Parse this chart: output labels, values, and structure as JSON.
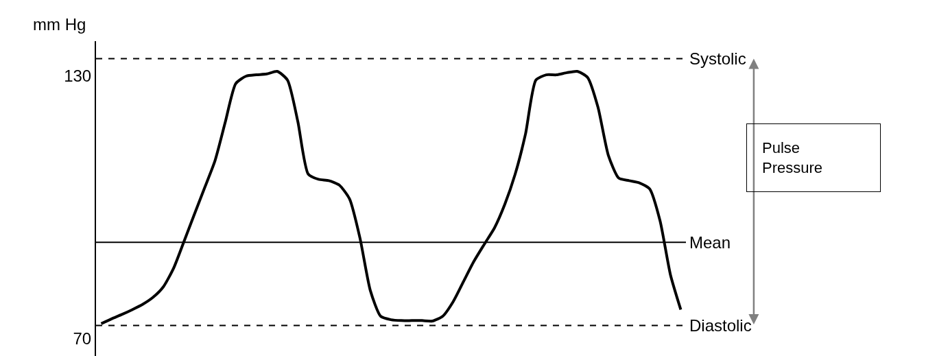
{
  "chart_data": {
    "type": "line",
    "ylabel": "mm Hg",
    "categories": [
      null,
      null,
      null,
      null,
      null,
      null,
      null,
      null,
      null,
      null,
      null,
      null,
      null,
      null,
      null,
      null,
      null,
      null,
      null,
      null,
      null,
      null,
      null,
      null,
      null,
      null,
      null,
      null,
      null,
      null,
      null,
      null,
      null,
      null,
      null,
      null,
      null,
      null,
      null,
      null,
      null,
      null,
      null,
      null,
      null,
      null,
      null,
      null,
      null,
      null,
      null,
      null,
      null,
      null,
      null,
      null,
      null
    ],
    "series": [
      {
        "color": "#000000",
        "values": [
          73.4,
          74.5,
          75.5,
          76.6,
          77.8,
          79.4,
          81.8,
          86.1,
          92.2,
          98.4,
          104.5,
          110.7,
          119.6,
          128.3,
          130,
          130.3,
          130.5,
          131.1,
          129.1,
          119.6,
          107.6,
          106.4,
          106.1,
          105.1,
          101.9,
          93,
          81,
          75.1,
          74.3,
          74.1,
          74.1,
          74.1,
          74,
          75.1,
          78.4,
          83,
          87.6,
          91.5,
          95.3,
          100.7,
          107.6,
          116.8,
          129.1,
          130.3,
          130.3,
          130.8,
          131.1,
          129.7,
          122.9,
          111.9,
          106.7,
          106.1,
          105.6,
          104.2,
          96.9,
          84.6,
          76.6
        ]
      }
    ],
    "ylim": [
      66,
      138
    ],
    "yticks": [
      70,
      130
    ],
    "tick_labels": "y",
    "marker": "none",
    "line_style": "solid",
    "ref_lines": [
      {
        "axis": "y",
        "value": 134,
        "label": "Systolic",
        "color": "#000000",
        "line_style": "dashed"
      },
      {
        "axis": "y",
        "value": 92,
        "label": "Mean",
        "color": "#000000",
        "line_style": "solid"
      },
      {
        "axis": "y",
        "value": 73,
        "label": "Diastolic",
        "color": "#000000",
        "line_style": "dashed"
      }
    ],
    "annotations": [
      "Pulse Pressure"
    ]
  }
}
